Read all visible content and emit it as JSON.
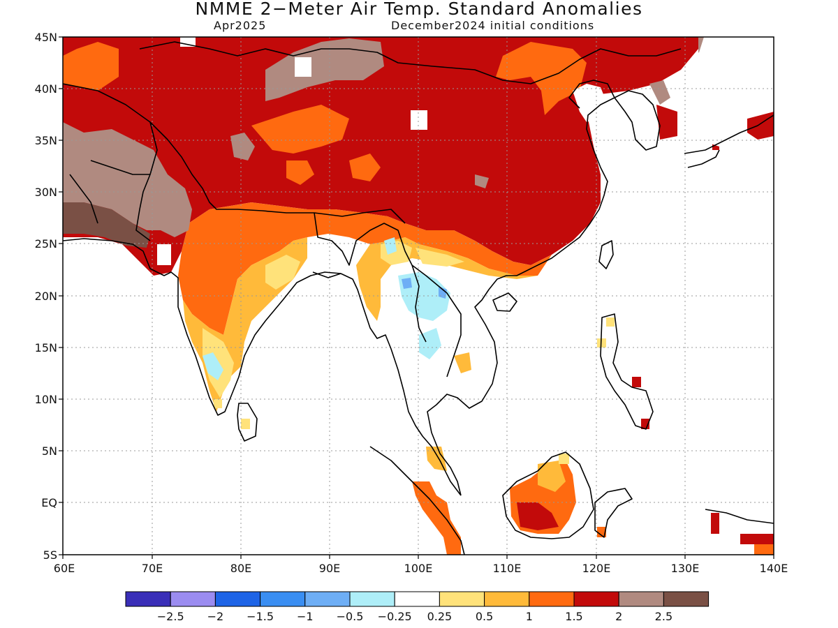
{
  "title": "NMME 2−Meter Air Temp. Standard Anomalies",
  "target_month": "Apr2025",
  "initial_conditions": "December2024 initial conditions",
  "lat_labels": [
    "45N",
    "40N",
    "35N",
    "30N",
    "25N",
    "20N",
    "15N",
    "10N",
    "5N",
    "EQ",
    "5S"
  ],
  "lon_labels": [
    "60E",
    "70E",
    "80E",
    "90E",
    "100E",
    "110E",
    "120E",
    "130E",
    "140E"
  ],
  "colorbar": {
    "labels": [
      "−2.5",
      "−2",
      "−1.5",
      "−1",
      "−0.5",
      "−0.25",
      "0.25",
      "0.5",
      "1",
      "1.5",
      "2",
      "2.5"
    ],
    "colors": [
      "#3a2fb8",
      "#9b8cf0",
      "#1e64e6",
      "#3a8ef2",
      "#6eaef5",
      "#aeeef8",
      "#ffffff",
      "#ffe27a",
      "#ffba3a",
      "#ff6a10",
      "#c20a0a",
      "#b08a80",
      "#7a5045"
    ]
  }
}
